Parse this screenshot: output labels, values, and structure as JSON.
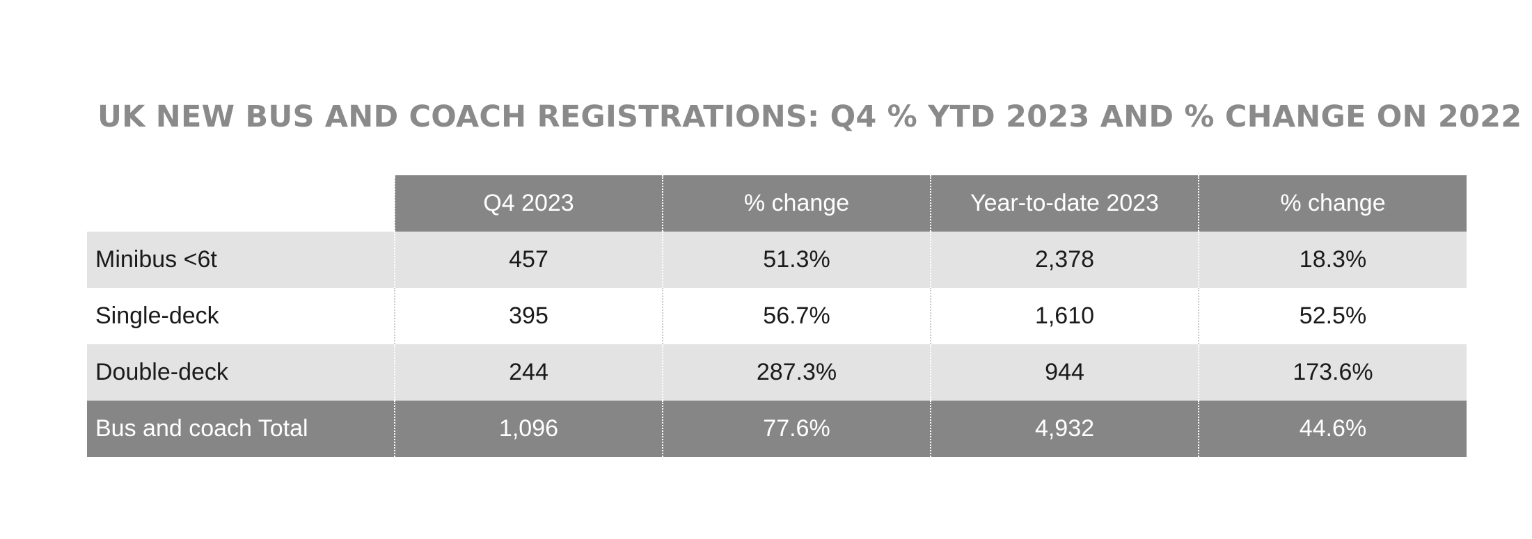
{
  "title": "UK NEW BUS AND COACH REGISTRATIONS: Q4 % YTD 2023 AND % CHANGE ON 2022",
  "table": {
    "headers": [
      "",
      "Q4 2023",
      "% change",
      "Year-to-date 2023",
      "% change"
    ],
    "rows": [
      {
        "label": "Minibus <6t",
        "cells": [
          "457",
          "51.3%",
          "2,378",
          "18.3%"
        ]
      },
      {
        "label": "Single-deck",
        "cells": [
          "395",
          "56.7%",
          "1,610",
          "52.5%"
        ]
      },
      {
        "label": "Double-deck",
        "cells": [
          "244",
          "287.3%",
          "944",
          "173.6%"
        ]
      }
    ],
    "total": {
      "label": "Bus and coach Total",
      "cells": [
        "1,096",
        "77.6%",
        "4,932",
        "44.6%"
      ]
    }
  },
  "colors": {
    "header_bg": "#868686",
    "row_alt_bg": "#e3e3e3",
    "title_text": "#8a8a8a"
  }
}
